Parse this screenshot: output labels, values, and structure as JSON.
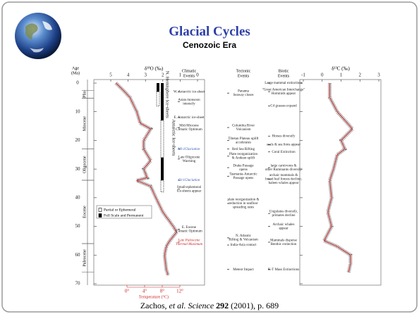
{
  "header": {
    "title": "Glacial Cycles",
    "subtitle": "Cenozoic Era"
  },
  "citation": {
    "authors": "Zachos, ",
    "etal": "et al.",
    "journal": "Science",
    "volume": "292",
    "rest": "(2001), p. 689"
  },
  "figure": {
    "age_axis": {
      "title_lines": [
        "Age",
        "(Ma)"
      ],
      "lim": [
        0,
        70
      ],
      "ticks": [
        0,
        10,
        20,
        30,
        40,
        50,
        60,
        70
      ]
    },
    "epochs": [
      {
        "name": "Plio",
        "start": 2.6,
        "end": 5.3
      },
      {
        "name": "Miocene",
        "start": 5.3,
        "end": 23
      },
      {
        "name": "Oligocene",
        "start": 23,
        "end": 33.9
      },
      {
        "name": "Eocene",
        "start": 33.9,
        "end": 56
      },
      {
        "name": "Paleocene",
        "start": 56,
        "end": 66
      }
    ],
    "d18o": {
      "title": "δ¹⁸O (‰)",
      "lim": [
        5,
        0
      ],
      "ticks": [
        5,
        4,
        3,
        2,
        1,
        0
      ],
      "ages": [
        0,
        3,
        5,
        10,
        14,
        16,
        20,
        23,
        25,
        27,
        30,
        33,
        34,
        36,
        40,
        45,
        50,
        52,
        55,
        57,
        60,
        65,
        67
      ],
      "values": [
        4.7,
        4.2,
        3.9,
        3.5,
        3.3,
        2.7,
        3.1,
        3.1,
        2.9,
        2.7,
        3.1,
        2.9,
        3.5,
        2.7,
        2.4,
        2.0,
        1.4,
        1.2,
        1.6,
        1.8,
        1.9,
        1.8,
        1.7
      ]
    },
    "temperature": {
      "title": "Temperature (°C)",
      "lim": [
        0,
        12
      ],
      "ticks": [
        {
          "value": 0,
          "label": "0°"
        },
        {
          "value": 4,
          "label": "4°"
        },
        {
          "value": 8,
          "label": "8°"
        },
        {
          "value": 12,
          "label": "12°"
        }
      ]
    },
    "d13c": {
      "title": "δ¹³C (‰)",
      "lim": [
        -1,
        3
      ],
      "ticks": [
        -1,
        0,
        1,
        2,
        3
      ],
      "ages": [
        0,
        5,
        10,
        16,
        20,
        23,
        25,
        30,
        34,
        40,
        45,
        50,
        55,
        57,
        60,
        63,
        66
      ],
      "values": [
        0.4,
        0.4,
        0.8,
        1.6,
        1.0,
        1.2,
        0.8,
        0.6,
        0.4,
        0.5,
        0.3,
        0.5,
        0.1,
        0.8,
        1.5,
        1.5,
        1.4
      ]
    },
    "ice_sheets": [
      {
        "label": "N. Hemisphere Ice-sheets",
        "full": [
          [
            0,
            3
          ]
        ],
        "partial": [
          [
            3,
            8
          ]
        ]
      },
      {
        "label": "Antarctic Ice-sheets",
        "full": [
          [
            0,
            13
          ],
          [
            26,
            33.9
          ]
        ],
        "partial": [
          [
            13,
            26
          ],
          [
            33.9,
            38
          ]
        ]
      }
    ],
    "legend": [
      "Partial or Ephemeral",
      "Full Scale and Permanent"
    ],
    "columns": [
      [
        "Climatic",
        "Events"
      ],
      [
        "Tectonic",
        "Events"
      ],
      [
        "Biotic",
        "Events"
      ]
    ],
    "climatic": [
      {
        "age": 3,
        "lines": [
          "W. Antarctic ice-sheet"
        ]
      },
      {
        "age": 6.5,
        "lines": [
          "Asian monsoon",
          "intensify"
        ]
      },
      {
        "age": 12,
        "lines": [
          "E. Antarctic ice-sheet"
        ]
      },
      {
        "age": 15.5,
        "lines": [
          "Mid-Miocene",
          "Climatic Optimum"
        ]
      },
      {
        "age": 23,
        "lines": [
          "Mi-1Glaciation"
        ],
        "color": "#3355aa"
      },
      {
        "age": 26.5,
        "lines": [
          "Late Oligocene",
          "Warming"
        ]
      },
      {
        "age": 33.9,
        "lines": [
          "Oi-1Glaciation"
        ],
        "color": "#3355aa"
      },
      {
        "age": 37,
        "lines": [
          "Small-ephemeral",
          "Ice-sheets appear"
        ]
      },
      {
        "age": 51,
        "lines": [
          "E. Eocene",
          "Climatic Optimum"
        ]
      },
      {
        "age": 55.5,
        "lines": [
          "Late Paleocene",
          "Thermal Maximum"
        ],
        "color": "#cc2222"
      }
    ],
    "tectonic": [
      {
        "age": 3.5,
        "lines": [
          "Panama",
          "Seaway closes"
        ]
      },
      {
        "age": 15.5,
        "lines": [
          "Columbia River",
          "Volcanism"
        ]
      },
      {
        "age": 20,
        "lines": [
          "Tibetan Plateau uplift",
          "accelerates"
        ]
      },
      {
        "age": 23,
        "lines": [
          "Red Sea Rifting"
        ]
      },
      {
        "age": 25.5,
        "lines": [
          "Plate reorganization",
          "& Andean uplift"
        ]
      },
      {
        "age": 29.5,
        "lines": [
          "Drake Passage",
          "opens"
        ]
      },
      {
        "age": 32.5,
        "lines": [
          "Tasmania-Antarctic",
          "Passage opens"
        ]
      },
      {
        "age": 42,
        "lines": [
          "plate reorganization &",
          "reduction in seafloor",
          "spreading rates"
        ]
      },
      {
        "age": 54,
        "lines": [
          "N. Atlantic",
          "Rifting & Volcanism"
        ]
      },
      {
        "age": 56.5,
        "lines": [
          "India-Asia contact"
        ]
      },
      {
        "age": 65,
        "lines": [
          "Meteor Impact"
        ]
      }
    ],
    "biotic": [
      {
        "age": 0,
        "lines": [
          "Large mammal extinctions"
        ]
      },
      {
        "age": 3,
        "lines": [
          "\"Great American Interchange\"",
          "Hominids appear"
        ]
      },
      {
        "age": 8,
        "lines": [
          "C4 grasses expand"
        ]
      },
      {
        "age": 18.5,
        "lines": [
          "Horses diversify"
        ]
      },
      {
        "age": 21.5,
        "lines": [
          "seals & sea lions appear"
        ]
      },
      {
        "age": 24,
        "lines": [
          "Coral Extinction"
        ]
      },
      {
        "age": 29.5,
        "lines": [
          "large carnivores &",
          "other Ruminants diversify"
        ]
      },
      {
        "age": 33.5,
        "lines": [
          "archaic mammals &",
          "broad leaf forests decline;",
          "baleen whales appear"
        ]
      },
      {
        "age": 45.5,
        "lines": [
          "Ungulates diversify,",
          "primates decline"
        ]
      },
      {
        "age": 50,
        "lines": [
          "Archaic whales",
          "appear"
        ]
      },
      {
        "age": 55.5,
        "lines": [
          "Mammals disperse",
          "Benthic extinction"
        ]
      },
      {
        "age": 65,
        "lines": [
          "K-T Mass Extinctions"
        ]
      }
    ]
  }
}
